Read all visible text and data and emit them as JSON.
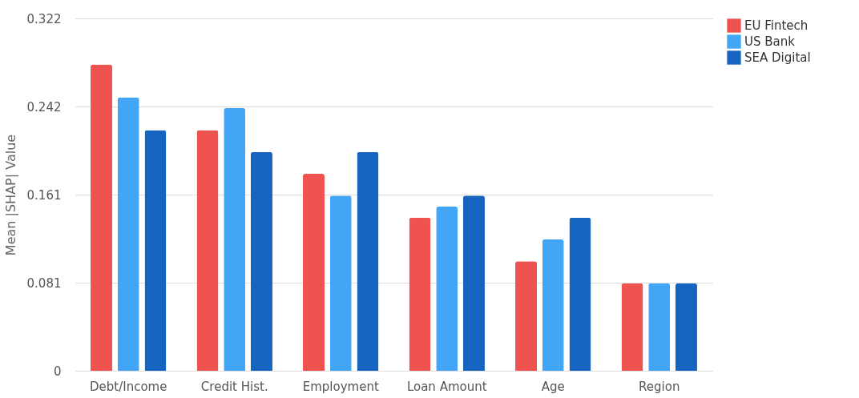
{
  "chart_data": {
    "type": "bar",
    "ylabel": "Mean |SHAP| Value",
    "categories": [
      "Debt/Income",
      "Credit Hist.",
      "Employment",
      "Loan Amount",
      "Age",
      "Region"
    ],
    "series": [
      {
        "name": "EU Fintech",
        "color": "#ef5350",
        "values": [
          0.28,
          0.22,
          0.18,
          0.14,
          0.1,
          0.08
        ]
      },
      {
        "name": "US Bank",
        "color": "#42a5f5",
        "values": [
          0.25,
          0.24,
          0.16,
          0.15,
          0.12,
          0.08
        ]
      },
      {
        "name": "SEA Digital",
        "color": "#1565c0",
        "values": [
          0.22,
          0.2,
          0.2,
          0.16,
          0.14,
          0.08
        ]
      }
    ],
    "ylim": [
      0,
      0.322
    ],
    "yticks": [
      0,
      {
        "value": 0.0805,
        "label": "0.081"
      },
      0.161,
      {
        "value": 0.2415,
        "label": "0.242"
      },
      0.322
    ],
    "grid": "y",
    "legend": "top right"
  }
}
